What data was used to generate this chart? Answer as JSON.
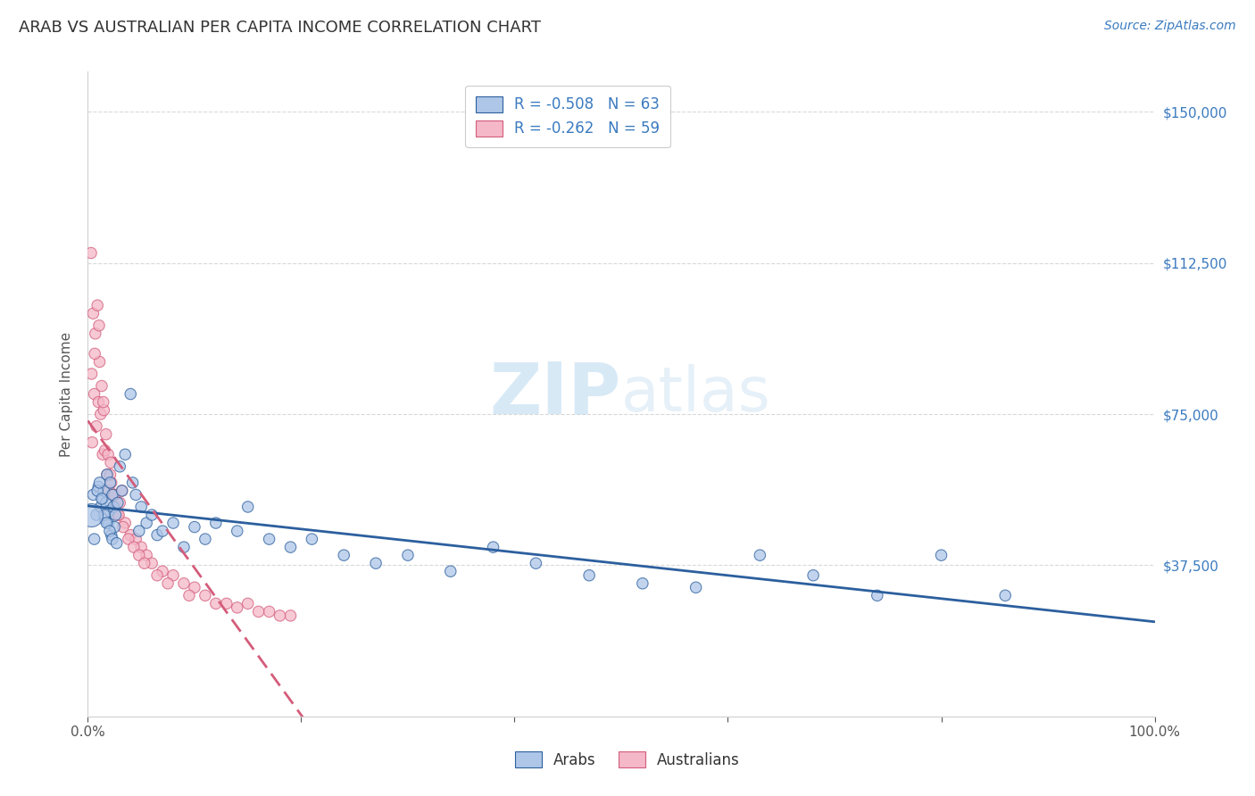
{
  "title": "ARAB VS AUSTRALIAN PER CAPITA INCOME CORRELATION CHART",
  "source": "Source: ZipAtlas.com",
  "ylabel": "Per Capita Income",
  "yticks": [
    0,
    37500,
    75000,
    112500,
    150000
  ],
  "ytick_labels": [
    "",
    "$37,500",
    "$75,000",
    "$112,500",
    "$150,000"
  ],
  "watermark_zip": "ZIP",
  "watermark_atlas": "atlas",
  "arab_scatter_color": "#aec6e8",
  "australian_scatter_color": "#f4b8c8",
  "arab_line_color": "#2c5f9e",
  "australian_line_color": "#d45c7a",
  "background_color": "#ffffff",
  "grid_color": "#d0d0d0",
  "title_color": "#333333",
  "axis_color": "#555555",
  "right_axis_color": "#3a7abf",
  "arab_R": -0.508,
  "arab_N": 63,
  "aus_R": -0.262,
  "aus_N": 59,
  "xlim": [
    0,
    100
  ],
  "ylim": [
    0,
    160000
  ],
  "title_fontsize": 13,
  "source_fontsize": 10,
  "label_fontsize": 11,
  "tick_fontsize": 11,
  "legend_fontsize": 12,
  "arab_x": [
    0.5,
    0.8,
    1.0,
    1.2,
    1.4,
    1.5,
    1.6,
    1.7,
    1.8,
    1.9,
    2.0,
    2.1,
    2.2,
    2.3,
    2.4,
    2.5,
    2.6,
    2.8,
    3.0,
    3.2,
    3.5,
    4.0,
    4.2,
    4.5,
    5.0,
    5.5,
    6.0,
    6.5,
    7.0,
    8.0,
    9.0,
    10.0,
    11.0,
    12.0,
    14.0,
    15.0,
    17.0,
    19.0,
    21.0,
    24.0,
    27.0,
    30.0,
    34.0,
    38.0,
    42.0,
    47.0,
    52.0,
    57.0,
    63.0,
    68.0,
    74.0,
    80.0,
    86.0,
    0.6,
    0.9,
    1.1,
    1.3,
    1.55,
    1.75,
    2.05,
    2.3,
    2.7,
    4.8
  ],
  "arab_y": [
    55000,
    50000,
    57000,
    52000,
    54000,
    56000,
    49000,
    53000,
    60000,
    48000,
    51000,
    58000,
    45000,
    55000,
    52000,
    47000,
    50000,
    53000,
    62000,
    56000,
    65000,
    80000,
    58000,
    55000,
    52000,
    48000,
    50000,
    45000,
    46000,
    48000,
    42000,
    47000,
    44000,
    48000,
    46000,
    52000,
    44000,
    42000,
    44000,
    40000,
    38000,
    40000,
    36000,
    42000,
    38000,
    35000,
    33000,
    32000,
    40000,
    35000,
    30000,
    40000,
    30000,
    44000,
    56000,
    58000,
    54000,
    50000,
    48000,
    46000,
    44000,
    43000,
    46000
  ],
  "arab_size": [
    80,
    80,
    80,
    80,
    80,
    80,
    80,
    80,
    80,
    80,
    80,
    80,
    80,
    80,
    80,
    80,
    80,
    80,
    80,
    80,
    80,
    80,
    80,
    80,
    80,
    80,
    80,
    80,
    80,
    80,
    80,
    80,
    80,
    80,
    80,
    80,
    80,
    80,
    80,
    80,
    80,
    80,
    80,
    80,
    80,
    80,
    80,
    80,
    80,
    80,
    80,
    80,
    80,
    80,
    80,
    80,
    80,
    80,
    80,
    80,
    80,
    80,
    80
  ],
  "arab_large_x": [
    0.3
  ],
  "arab_large_y": [
    50000
  ],
  "arab_large_size": [
    350
  ],
  "aus_x": [
    0.4,
    0.6,
    0.8,
    1.0,
    1.2,
    1.4,
    1.6,
    1.8,
    2.0,
    2.2,
    2.4,
    2.6,
    2.8,
    3.0,
    3.5,
    4.0,
    4.5,
    5.0,
    5.5,
    6.0,
    7.0,
    8.0,
    9.0,
    10.0,
    11.0,
    13.0,
    15.0,
    17.0,
    19.0,
    0.3,
    0.5,
    0.7,
    0.9,
    1.1,
    1.3,
    1.5,
    1.7,
    1.9,
    2.1,
    2.5,
    2.9,
    3.3,
    3.8,
    4.3,
    4.8,
    5.3,
    6.5,
    7.5,
    9.5,
    12.0,
    14.0,
    16.0,
    18.0,
    0.35,
    0.65,
    1.05,
    1.45,
    2.15,
    3.2
  ],
  "aus_y": [
    68000,
    80000,
    72000,
    78000,
    75000,
    65000,
    66000,
    60000,
    56000,
    58000,
    55000,
    52000,
    50000,
    53000,
    48000,
    45000,
    44000,
    42000,
    40000,
    38000,
    36000,
    35000,
    33000,
    32000,
    30000,
    28000,
    28000,
    26000,
    25000,
    115000,
    100000,
    95000,
    102000,
    88000,
    82000,
    76000,
    70000,
    65000,
    60000,
    55000,
    50000,
    47000,
    44000,
    42000,
    40000,
    38000,
    35000,
    33000,
    30000,
    28000,
    27000,
    26000,
    25000,
    85000,
    90000,
    97000,
    78000,
    63000,
    56000
  ],
  "aus_size": [
    80,
    80,
    80,
    80,
    80,
    80,
    80,
    80,
    80,
    80,
    80,
    80,
    80,
    80,
    80,
    80,
    80,
    80,
    80,
    80,
    80,
    80,
    80,
    80,
    80,
    80,
    80,
    80,
    80,
    80,
    80,
    80,
    80,
    80,
    80,
    80,
    80,
    80,
    80,
    80,
    80,
    80,
    80,
    80,
    80,
    80,
    80,
    80,
    80,
    80,
    80,
    80,
    80,
    80,
    80,
    80,
    80,
    80,
    80
  ]
}
